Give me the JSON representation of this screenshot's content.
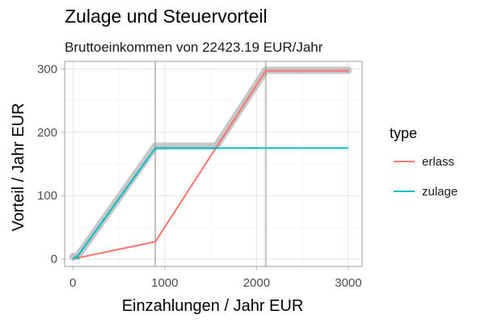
{
  "chart_data": {
    "type": "line",
    "title": "Zulage und Steuervorteil",
    "subtitle": "Bruttoeinkommen von 22423.19 EUR/Jahr",
    "xlabel": "Einzahlungen / Jahr EUR",
    "ylabel": "Vorteil / Jahr EUR",
    "xlim": [
      -90,
      3150
    ],
    "ylim": [
      -12,
      312
    ],
    "x_ticks": [
      0,
      1000,
      2000,
      3000
    ],
    "y_ticks": [
      0,
      100,
      200,
      300
    ],
    "x_tick_labels": [
      "0",
      "1000",
      "2000",
      "3000"
    ],
    "y_tick_labels": [
      "0",
      "100",
      "200",
      "300"
    ],
    "grid": true,
    "legend_position": "right",
    "legend_title": "type",
    "series": [
      {
        "name": "erlass",
        "color": "#F8766D",
        "points": [
          [
            0,
            0
          ],
          [
            897,
            27
          ],
          [
            2100,
            297
          ],
          [
            3000,
            297
          ]
        ]
      },
      {
        "name": "zulage",
        "color": "#00BFC4",
        "points": [
          [
            0,
            0
          ],
          [
            60,
            6
          ],
          [
            60,
            0
          ],
          [
            60,
            6
          ],
          [
            897,
            175
          ],
          [
            3000,
            175
          ]
        ]
      }
    ],
    "highlight_band": {
      "color": "#999999",
      "points": [
        [
          0,
          3
        ],
        [
          60,
          6
        ],
        [
          897,
          178
        ],
        [
          1560,
          178
        ],
        [
          2100,
          298
        ],
        [
          3000,
          298
        ]
      ]
    },
    "vertical_lines": [
      {
        "x": 897,
        "color": "#BEBEBE"
      },
      {
        "x": 2100,
        "color": "#BEBEBE"
      }
    ]
  }
}
